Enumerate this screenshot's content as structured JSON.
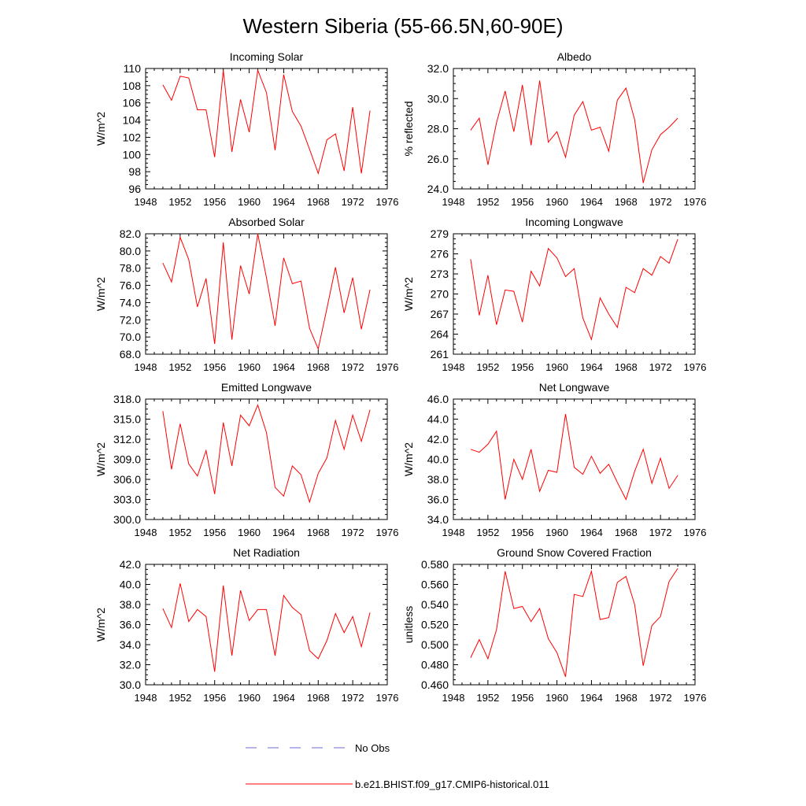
{
  "figure": {
    "title": "Western Siberia (55-66.5N,60-90E)"
  },
  "legend": {
    "entries": [
      {
        "label": "No Obs",
        "color": "#6b6bd6",
        "dash": true
      },
      {
        "label": "b.e21.BHIST.f09_g17.CMIP6-historical.011",
        "color": "#ff0000",
        "dash": false
      }
    ]
  },
  "chart_data": [
    {
      "type": "line",
      "title": "Incoming Solar",
      "ylabel": "W/m^2",
      "xlim": [
        1948,
        1976
      ],
      "xticks": [
        "1948",
        "1952",
        "1956",
        "1960",
        "1964",
        "1968",
        "1972",
        "1976"
      ],
      "ylim": [
        96,
        110
      ],
      "yticks": [
        "96",
        "98",
        "100",
        "102",
        "104",
        "106",
        "108",
        "110"
      ],
      "x": [
        1950,
        1951,
        1952,
        1953,
        1954,
        1955,
        1956,
        1957,
        1958,
        1959,
        1960,
        1961,
        1962,
        1963,
        1964,
        1965,
        1966,
        1967,
        1968,
        1969,
        1970,
        1971,
        1972,
        1973,
        1974
      ],
      "series": [
        {
          "color": "#ff0000",
          "values": [
            108.1,
            106.3,
            109.1,
            108.9,
            105.2,
            105.2,
            99.7,
            109.8,
            100.3,
            106.4,
            102.6,
            109.8,
            107.2,
            100.5,
            109.3,
            105.0,
            103.3,
            100.6,
            97.8,
            101.7,
            102.4,
            98.1,
            105.5,
            97.8,
            105.1
          ]
        }
      ]
    },
    {
      "type": "line",
      "title": "Albedo",
      "ylabel": "% reflected",
      "xlim": [
        1948,
        1976
      ],
      "xticks": [
        "1948",
        "1952",
        "1956",
        "1960",
        "1964",
        "1968",
        "1972",
        "1976"
      ],
      "ylim": [
        24,
        32
      ],
      "yticks": [
        "24.0",
        "26.0",
        "28.0",
        "30.0",
        "32.0"
      ],
      "x": [
        1950,
        1951,
        1952,
        1953,
        1954,
        1955,
        1956,
        1957,
        1958,
        1959,
        1960,
        1961,
        1962,
        1963,
        1964,
        1965,
        1966,
        1967,
        1968,
        1969,
        1970,
        1971,
        1972,
        1973,
        1974
      ],
      "series": [
        {
          "color": "#ff0000",
          "values": [
            27.9,
            28.7,
            25.6,
            28.4,
            30.5,
            27.8,
            30.9,
            26.9,
            31.2,
            27.1,
            27.8,
            26.1,
            28.9,
            29.8,
            27.9,
            28.1,
            26.5,
            29.9,
            30.7,
            28.6,
            24.4,
            26.6,
            27.6,
            28.1,
            28.7
          ]
        }
      ]
    },
    {
      "type": "line",
      "title": "Absorbed Solar",
      "ylabel": "W/m^2",
      "xlim": [
        1948,
        1976
      ],
      "xticks": [
        "1948",
        "1952",
        "1956",
        "1960",
        "1964",
        "1968",
        "1972",
        "1976"
      ],
      "ylim": [
        68,
        82
      ],
      "yticks": [
        "68.0",
        "70.0",
        "72.0",
        "74.0",
        "76.0",
        "78.0",
        "80.0",
        "82.0"
      ],
      "x": [
        1950,
        1951,
        1952,
        1953,
        1954,
        1955,
        1956,
        1957,
        1958,
        1959,
        1960,
        1961,
        1962,
        1963,
        1964,
        1965,
        1966,
        1967,
        1968,
        1969,
        1970,
        1971,
        1972,
        1973,
        1974
      ],
      "series": [
        {
          "color": "#ff0000",
          "values": [
            78.6,
            76.4,
            81.6,
            79.0,
            73.5,
            76.8,
            69.2,
            81.0,
            69.7,
            78.3,
            75.0,
            82.0,
            76.9,
            71.3,
            79.2,
            76.2,
            76.5,
            71.0,
            68.6,
            73.3,
            78.1,
            72.8,
            76.9,
            70.9,
            75.5
          ]
        }
      ]
    },
    {
      "type": "line",
      "title": "Incoming Longwave",
      "ylabel": "W/m^2",
      "xlim": [
        1948,
        1976
      ],
      "xticks": [
        "1948",
        "1952",
        "1956",
        "1960",
        "1964",
        "1968",
        "1972",
        "1976"
      ],
      "ylim": [
        261,
        279
      ],
      "yticks": [
        "261",
        "264",
        "267",
        "270",
        "273",
        "276",
        "279"
      ],
      "x": [
        1950,
        1951,
        1952,
        1953,
        1954,
        1955,
        1956,
        1957,
        1958,
        1959,
        1960,
        1961,
        1962,
        1963,
        1964,
        1965,
        1966,
        1967,
        1968,
        1969,
        1970,
        1971,
        1972,
        1973,
        1974
      ],
      "series": [
        {
          "color": "#ff0000",
          "values": [
            275.2,
            266.8,
            272.8,
            265.4,
            270.6,
            270.4,
            265.8,
            273.4,
            271.2,
            276.8,
            275.4,
            272.6,
            273.8,
            266.4,
            263.2,
            269.4,
            267.0,
            265.0,
            271.0,
            270.2,
            273.8,
            272.8,
            275.6,
            274.6,
            278.2
          ]
        }
      ]
    },
    {
      "type": "line",
      "title": "Emitted Longwave",
      "ylabel": "W/m^2",
      "xlim": [
        1948,
        1976
      ],
      "xticks": [
        "1948",
        "1952",
        "1956",
        "1960",
        "1964",
        "1968",
        "1972",
        "1976"
      ],
      "ylim": [
        300,
        318
      ],
      "yticks": [
        "300.0",
        "303.0",
        "306.0",
        "309.0",
        "312.0",
        "315.0",
        "318.0"
      ],
      "x": [
        1950,
        1951,
        1952,
        1953,
        1954,
        1955,
        1956,
        1957,
        1958,
        1959,
        1960,
        1961,
        1962,
        1963,
        1964,
        1965,
        1966,
        1967,
        1968,
        1969,
        1970,
        1971,
        1972,
        1973,
        1974
      ],
      "series": [
        {
          "color": "#ff0000",
          "values": [
            316.2,
            307.5,
            314.3,
            308.3,
            306.5,
            310.3,
            303.8,
            314.5,
            308.0,
            315.6,
            314.0,
            317.1,
            313.0,
            304.8,
            303.5,
            308.0,
            306.7,
            302.6,
            306.9,
            309.2,
            314.8,
            310.5,
            315.6,
            311.7,
            316.4
          ]
        }
      ]
    },
    {
      "type": "line",
      "title": "Net Longwave",
      "ylabel": "W/m^2",
      "xlim": [
        1948,
        1976
      ],
      "xticks": [
        "1948",
        "1952",
        "1956",
        "1960",
        "1964",
        "1968",
        "1972",
        "1976"
      ],
      "ylim": [
        34,
        46
      ],
      "yticks": [
        "34.0",
        "36.0",
        "38.0",
        "40.0",
        "42.0",
        "44.0",
        "46.0"
      ],
      "x": [
        1950,
        1951,
        1952,
        1953,
        1954,
        1955,
        1956,
        1957,
        1958,
        1959,
        1960,
        1961,
        1962,
        1963,
        1964,
        1965,
        1966,
        1967,
        1968,
        1969,
        1970,
        1971,
        1972,
        1973,
        1974
      ],
      "series": [
        {
          "color": "#ff0000",
          "values": [
            41.0,
            40.7,
            41.5,
            42.8,
            36.0,
            40.0,
            38.0,
            41.0,
            36.8,
            38.9,
            38.7,
            44.5,
            39.2,
            38.5,
            40.3,
            38.6,
            39.5,
            37.7,
            36.0,
            38.8,
            41.0,
            37.6,
            40.1,
            37.1,
            38.4
          ]
        }
      ]
    },
    {
      "type": "line",
      "title": "Net Radiation",
      "ylabel": "W/m^2",
      "xlim": [
        1948,
        1976
      ],
      "xticks": [
        "1948",
        "1952",
        "1956",
        "1960",
        "1964",
        "1968",
        "1972",
        "1976"
      ],
      "ylim": [
        30,
        42
      ],
      "yticks": [
        "30.0",
        "32.0",
        "34.0",
        "36.0",
        "38.0",
        "40.0",
        "42.0"
      ],
      "x": [
        1950,
        1951,
        1952,
        1953,
        1954,
        1955,
        1956,
        1957,
        1958,
        1959,
        1960,
        1961,
        1962,
        1963,
        1964,
        1965,
        1966,
        1967,
        1968,
        1969,
        1970,
        1971,
        1972,
        1973,
        1974
      ],
      "series": [
        {
          "color": "#ff0000",
          "values": [
            37.6,
            35.7,
            40.1,
            36.3,
            37.5,
            36.8,
            31.3,
            39.9,
            32.9,
            39.4,
            36.4,
            37.5,
            37.5,
            32.9,
            38.9,
            37.7,
            37.0,
            33.4,
            32.6,
            34.4,
            37.1,
            35.2,
            36.8,
            33.8,
            37.2
          ]
        }
      ]
    },
    {
      "type": "line",
      "title": "Ground Snow Covered Fraction",
      "ylabel": "unitless",
      "xlim": [
        1948,
        1976
      ],
      "xticks": [
        "1948",
        "1952",
        "1956",
        "1960",
        "1964",
        "1968",
        "1972",
        "1976"
      ],
      "ylim": [
        0.46,
        0.58
      ],
      "yticks": [
        "0.460",
        "0.480",
        "0.500",
        "0.520",
        "0.540",
        "0.560",
        "0.580"
      ],
      "x": [
        1950,
        1951,
        1952,
        1953,
        1954,
        1955,
        1956,
        1957,
        1958,
        1959,
        1960,
        1961,
        1962,
        1963,
        1964,
        1965,
        1966,
        1967,
        1968,
        1969,
        1970,
        1971,
        1972,
        1973,
        1974
      ],
      "series": [
        {
          "color": "#ff0000",
          "values": [
            0.487,
            0.505,
            0.486,
            0.515,
            0.573,
            0.536,
            0.538,
            0.523,
            0.536,
            0.506,
            0.492,
            0.468,
            0.55,
            0.548,
            0.573,
            0.525,
            0.527,
            0.562,
            0.568,
            0.54,
            0.479,
            0.519,
            0.528,
            0.563,
            0.576
          ]
        }
      ]
    }
  ]
}
